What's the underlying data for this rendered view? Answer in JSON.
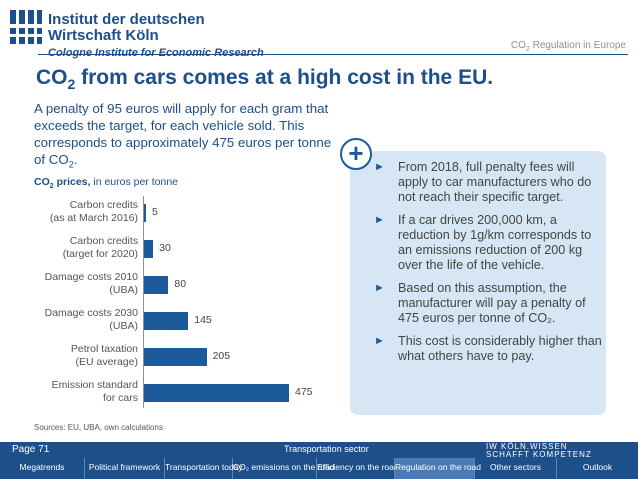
{
  "header": {
    "institute_line1": "Institut der deutschen",
    "institute_line2": "Wirtschaft Köln",
    "institute_sub": "Cologne Institute for Economic Research",
    "section_prefix": "CO",
    "section_sub": "2",
    "section_suffix": " Regulation in Europe"
  },
  "slide": {
    "title_prefix": "CO",
    "title_sub": "2",
    "title_suffix": " from cars comes at a high cost in the EU.",
    "intro_main": "A penalty of 95 euros will apply for each gram that exceeds the target, for each vehicle sold. This corresponds to approximately 475 euros per tonne of CO",
    "intro_sub": "2",
    "intro_end": ".",
    "chart_caption_bold_prefix": "CO",
    "chart_caption_bold_sub": "2",
    "chart_caption_bold_suffix": " prices,",
    "chart_caption_rest": " in euros per tonne",
    "sources": "Sources: EU, UBA, own calculations"
  },
  "chart_data": {
    "type": "bar",
    "orientation": "horizontal",
    "categories": [
      "Carbon credits (as at March 2016)",
      "Carbon credits (target for 2020)",
      "Damage costs 2010 (UBA)",
      "Damage costs 2030 (UBA)",
      "Petrol taxation (EU average)",
      "Emission standard for cars"
    ],
    "category_lines": [
      [
        "Carbon credits",
        "(as at March 2016)"
      ],
      [
        "Carbon credits",
        "(target for 2020)"
      ],
      [
        "Damage costs 2010",
        "(UBA)"
      ],
      [
        "Damage costs 2030",
        "(UBA)"
      ],
      [
        "Petrol taxation",
        "(EU average)"
      ],
      [
        "Emission standard",
        "for cars"
      ]
    ],
    "values": [
      5,
      30,
      80,
      145,
      205,
      475
    ],
    "value_labels": [
      "5",
      "30",
      "80",
      "145",
      "205",
      "475"
    ],
    "xlim": [
      0,
      475
    ],
    "bar_color": "#1d5a99",
    "grid": false
  },
  "panel": {
    "plus_symbol": "+",
    "bullet_marker": "►",
    "bullets": [
      "From 2018, full penalty fees will apply to car manufacturers who do not reach their specific target.",
      "If a car drives 200,000 km, a reduction by 1g/km corresponds to an emissions reduction of 200 kg over the life of the vehicle.",
      "Based on this assumption, the manufacturer will pay a penalty of 475 euros per tonne of CO₂.",
      "This cost is considerably higher than what others have to pay."
    ]
  },
  "footer": {
    "page": "Page  71",
    "section": "Transportation sector",
    "brand_line1": "IW KÖLN.WISSEN",
    "brand_line2": "SCHAFFT KOMPETENZ",
    "nav": [
      {
        "label": "Megatrends",
        "active": false
      },
      {
        "label": "Political framework",
        "active": false
      },
      {
        "label": "Transportation today",
        "active": false
      },
      {
        "label": "CO₂ emissions on the road",
        "active": false
      },
      {
        "label": "Efficiency on the road",
        "active": false
      },
      {
        "label": "Regulation on the road",
        "active": true
      },
      {
        "label": "Other sectors",
        "active": false
      },
      {
        "label": "Outlook",
        "active": false
      }
    ]
  },
  "colors": {
    "brand_blue": "#1d4f8a",
    "bar_blue": "#1d5a99",
    "panel_bg": "#d6e6f4",
    "nav_active": "#4a7bb6"
  }
}
